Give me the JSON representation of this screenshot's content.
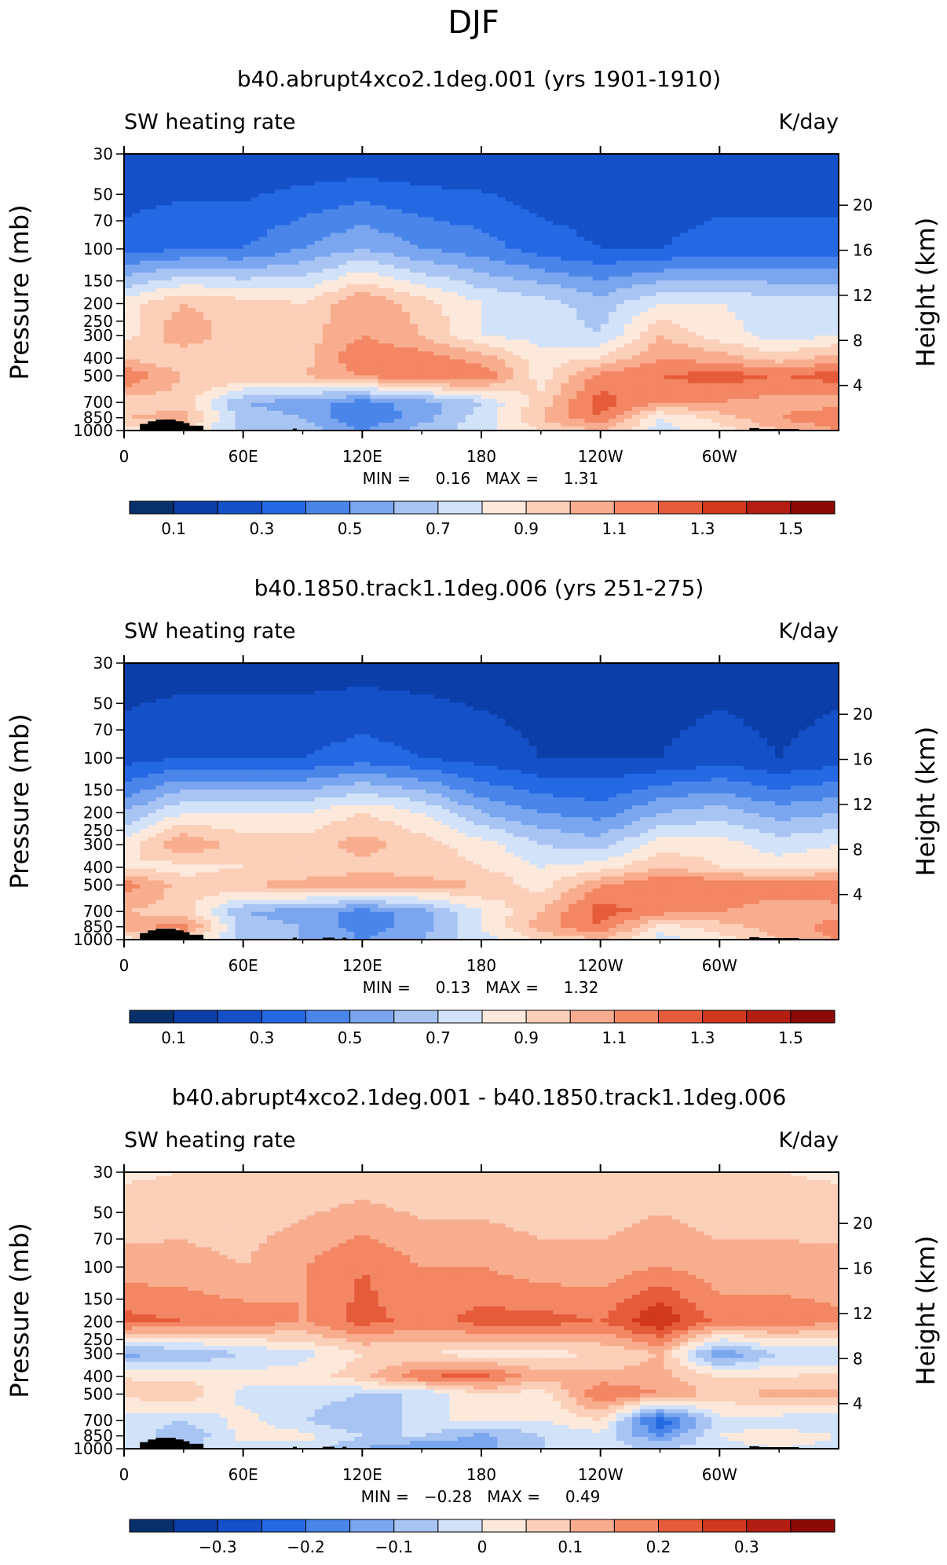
{
  "figure": {
    "title": "DJF",
    "background": "#ffffff"
  },
  "chart_data": [
    {
      "type": "heatmap",
      "title": "b40.abrupt4xco2.1deg.001 (yrs 1901-1910)",
      "left_label": "SW heating rate",
      "right_label": "K/day",
      "x_tick_labels": [
        "0",
        "60E",
        "120E",
        "180",
        "120W",
        "60W"
      ],
      "x_ticks_deg": [
        0,
        60,
        120,
        180,
        240,
        300
      ],
      "xlim_deg": [
        0,
        360
      ],
      "y_tick_labels": [
        "30",
        "50",
        "70",
        "100",
        "150",
        "200",
        "250",
        "300",
        "400",
        "500",
        "700",
        "850",
        "1000"
      ],
      "y_ticks_mb": [
        30,
        50,
        70,
        100,
        150,
        200,
        250,
        300,
        400,
        500,
        700,
        850,
        1000
      ],
      "ylim_mb": [
        30,
        1000
      ],
      "ylabel": "Pressure (mb)",
      "right_axis_label": "Height (km)",
      "height_tick_labels": [
        "20",
        "16",
        "12",
        "8",
        "4"
      ],
      "height_ticks_km": [
        20,
        16,
        12,
        8,
        4
      ],
      "stats_text": "MIN =     0.16   MAX =     1.31",
      "min": 0.16,
      "max": 1.31,
      "colorbar_labels": [
        "0.1",
        "0.3",
        "0.5",
        "0.7",
        "0.9",
        "1.1",
        "1.3",
        "1.5"
      ],
      "colorbar_levels": [
        0.1,
        0.2,
        0.3,
        0.4,
        0.5,
        0.6,
        0.7,
        0.8,
        0.9,
        1.0,
        1.1,
        1.2,
        1.3,
        1.4,
        1.5
      ],
      "field": {
        "lon": [
          0,
          30,
          60,
          90,
          120,
          150,
          180,
          210,
          240,
          270,
          300,
          330,
          360
        ],
        "p": [
          30,
          100,
          200,
          300,
          400,
          500,
          700,
          850,
          1000
        ],
        "values": [
          [
            0.2,
            0.2,
            0.2,
            0.2,
            0.2,
            0.2,
            0.2,
            0.2,
            0.2,
            0.2,
            0.2,
            0.2,
            0.2
          ],
          [
            0.35,
            0.4,
            0.4,
            0.5,
            0.6,
            0.5,
            0.45,
            0.35,
            0.3,
            0.3,
            0.35,
            0.35,
            0.35
          ],
          [
            0.85,
            1.0,
            0.95,
            0.9,
            1.1,
            0.95,
            0.8,
            0.75,
            0.65,
            0.8,
            0.8,
            0.75,
            0.75
          ],
          [
            0.85,
            1.1,
            0.9,
            0.95,
            1.1,
            1.0,
            0.8,
            0.75,
            0.7,
            1.0,
            0.85,
            0.75,
            0.8
          ],
          [
            1.0,
            0.9,
            0.95,
            0.95,
            1.2,
            1.15,
            1.05,
            0.85,
            0.9,
            1.1,
            1.05,
            0.95,
            1.05
          ],
          [
            1.2,
            1.0,
            1.0,
            1.0,
            1.1,
            1.2,
            1.2,
            0.85,
            1.15,
            1.2,
            1.25,
            1.2,
            1.25
          ],
          [
            0.95,
            0.95,
            0.6,
            0.55,
            0.45,
            0.55,
            0.7,
            0.95,
            1.25,
            1.1,
            1.1,
            1.05,
            1.05
          ],
          [
            1.0,
            1.05,
            0.65,
            0.6,
            0.4,
            0.55,
            0.75,
            1.0,
            1.2,
            0.8,
            0.95,
            1.1,
            1.2
          ],
          [
            0.85,
            0.9,
            0.65,
            0.65,
            0.5,
            0.65,
            0.75,
            0.9,
            1.0,
            0.75,
            0.85,
            1.0,
            1.1
          ]
        ]
      },
      "terrain_mask": "black"
    },
    {
      "type": "heatmap",
      "title": "b40.1850.track1.1deg.006 (yrs 251-275)",
      "left_label": "SW heating rate",
      "right_label": "K/day",
      "x_tick_labels": [
        "0",
        "60E",
        "120E",
        "180",
        "120W",
        "60W"
      ],
      "x_ticks_deg": [
        0,
        60,
        120,
        180,
        240,
        300
      ],
      "xlim_deg": [
        0,
        360
      ],
      "y_tick_labels": [
        "30",
        "50",
        "70",
        "100",
        "150",
        "200",
        "250",
        "300",
        "400",
        "500",
        "700",
        "850",
        "1000"
      ],
      "y_ticks_mb": [
        30,
        50,
        70,
        100,
        150,
        200,
        250,
        300,
        400,
        500,
        700,
        850,
        1000
      ],
      "ylim_mb": [
        30,
        1000
      ],
      "ylabel": "Pressure (mb)",
      "right_axis_label": "Height (km)",
      "height_tick_labels": [
        "20",
        "16",
        "12",
        "8",
        "4"
      ],
      "height_ticks_km": [
        20,
        16,
        12,
        8,
        4
      ],
      "stats_text": "MIN =     0.13   MAX =     1.32",
      "min": 0.13,
      "max": 1.32,
      "colorbar_labels": [
        "0.1",
        "0.3",
        "0.5",
        "0.7",
        "0.9",
        "1.1",
        "1.3",
        "1.5"
      ],
      "colorbar_levels": [
        0.1,
        0.2,
        0.3,
        0.4,
        0.5,
        0.6,
        0.7,
        0.8,
        0.9,
        1.0,
        1.1,
        1.2,
        1.3,
        1.4,
        1.5
      ],
      "field": {
        "lon": [
          0,
          30,
          60,
          90,
          120,
          150,
          180,
          210,
          240,
          270,
          300,
          330,
          360
        ],
        "p": [
          30,
          100,
          200,
          300,
          400,
          500,
          700,
          850,
          1000
        ],
        "values": [
          [
            0.15,
            0.15,
            0.15,
            0.15,
            0.15,
            0.15,
            0.15,
            0.15,
            0.15,
            0.15,
            0.15,
            0.15,
            0.15
          ],
          [
            0.25,
            0.3,
            0.3,
            0.3,
            0.35,
            0.3,
            0.25,
            0.2,
            0.2,
            0.2,
            0.25,
            0.2,
            0.25
          ],
          [
            0.6,
            0.8,
            0.8,
            0.8,
            0.9,
            0.8,
            0.6,
            0.5,
            0.45,
            0.6,
            0.65,
            0.55,
            0.6
          ],
          [
            0.85,
            1.1,
            0.95,
            0.95,
            1.05,
            0.95,
            0.85,
            0.7,
            0.65,
            0.85,
            0.85,
            0.75,
            0.8
          ],
          [
            0.9,
            0.85,
            0.9,
            0.9,
            0.95,
            0.95,
            0.9,
            0.8,
            0.85,
            1.0,
            0.9,
            0.85,
            0.9
          ],
          [
            1.15,
            0.95,
            1.0,
            1.05,
            1.1,
            1.05,
            1.0,
            0.85,
            1.1,
            1.2,
            1.2,
            1.15,
            1.2
          ],
          [
            1.0,
            0.95,
            0.6,
            0.55,
            0.45,
            0.55,
            0.8,
            1.0,
            1.25,
            1.15,
            1.1,
            1.05,
            1.05
          ],
          [
            1.05,
            1.15,
            0.65,
            0.6,
            0.45,
            0.55,
            0.8,
            1.05,
            1.2,
            0.85,
            0.95,
            1.05,
            1.15
          ],
          [
            0.85,
            0.95,
            0.65,
            0.6,
            0.5,
            0.6,
            0.75,
            0.9,
            1.0,
            0.75,
            0.85,
            1.0,
            1.1
          ]
        ]
      },
      "terrain_mask": "black"
    },
    {
      "type": "heatmap",
      "title": "b40.abrupt4xco2.1deg.001 - b40.1850.track1.1deg.006",
      "left_label": "SW heating rate",
      "right_label": "K/day",
      "x_tick_labels": [
        "0",
        "60E",
        "120E",
        "180",
        "120W",
        "60W"
      ],
      "x_ticks_deg": [
        0,
        60,
        120,
        180,
        240,
        300
      ],
      "xlim_deg": [
        0,
        360
      ],
      "y_tick_labels": [
        "30",
        "50",
        "70",
        "100",
        "150",
        "200",
        "250",
        "300",
        "400",
        "500",
        "700",
        "850",
        "1000"
      ],
      "y_ticks_mb": [
        30,
        50,
        70,
        100,
        150,
        200,
        250,
        300,
        400,
        500,
        700,
        850,
        1000
      ],
      "ylim_mb": [
        30,
        1000
      ],
      "ylabel": "Pressure (mb)",
      "right_axis_label": "Height (km)",
      "height_tick_labels": [
        "20",
        "16",
        "12",
        "8",
        "4"
      ],
      "height_ticks_km": [
        20,
        16,
        12,
        8,
        4
      ],
      "stats_text": "MIN =   −0.28   MAX =     0.49",
      "min": -0.28,
      "max": 0.49,
      "colorbar_labels": [
        "−0.3",
        "−0.2",
        "−0.1",
        "0",
        "0.1",
        "0.2",
        "0.3"
      ],
      "colorbar_levels": [
        -0.35,
        -0.3,
        -0.25,
        -0.2,
        -0.15,
        -0.1,
        -0.05,
        0,
        0.05,
        0.1,
        0.15,
        0.2,
        0.25,
        0.3,
        0.35
      ],
      "field": {
        "lon": [
          0,
          30,
          60,
          90,
          120,
          150,
          180,
          210,
          240,
          270,
          300,
          330,
          360
        ],
        "p": [
          30,
          100,
          200,
          300,
          400,
          500,
          700,
          850,
          1000
        ],
        "values": [
          [
            0.04,
            0.05,
            0.05,
            0.05,
            0.06,
            0.05,
            0.05,
            0.05,
            0.05,
            0.06,
            0.05,
            0.05,
            0.04
          ],
          [
            0.12,
            0.12,
            0.1,
            0.15,
            0.2,
            0.15,
            0.15,
            0.12,
            0.12,
            0.15,
            0.12,
            0.12,
            0.12
          ],
          [
            0.22,
            0.2,
            0.18,
            0.15,
            0.22,
            0.18,
            0.22,
            0.22,
            0.2,
            0.3,
            0.18,
            0.18,
            0.16
          ],
          [
            -0.12,
            -0.1,
            -0.05,
            -0.02,
            0.05,
            0.05,
            0.02,
            0.03,
            0.05,
            0.1,
            -0.15,
            -0.05,
            -0.05
          ],
          [
            0.05,
            0.03,
            0.02,
            0.03,
            0.08,
            0.2,
            0.22,
            0.12,
            0.12,
            0.12,
            0.05,
            0.05,
            0.06
          ],
          [
            0.06,
            0.1,
            -0.02,
            -0.02,
            -0.05,
            -0.05,
            0.05,
            0.02,
            0.2,
            0.15,
            0.08,
            0.12,
            0.12
          ],
          [
            -0.02,
            -0.05,
            0.02,
            -0.05,
            -0.1,
            -0.02,
            0.02,
            0.0,
            0.05,
            -0.25,
            -0.02,
            -0.03,
            -0.05
          ],
          [
            0.0,
            -0.1,
            0.02,
            0.02,
            -0.05,
            -0.05,
            -0.12,
            -0.05,
            -0.02,
            -0.15,
            0.0,
            0.03,
            0.0
          ],
          [
            -0.05,
            -0.05,
            -0.02,
            -0.02,
            -0.1,
            -0.15,
            -0.12,
            -0.05,
            -0.03,
            -0.05,
            -0.02,
            0.0,
            -0.02
          ]
        ]
      },
      "terrain_mask": "black"
    }
  ],
  "colors": {
    "colormap": [
      "#08306b",
      "#0b3ea8",
      "#1450c8",
      "#2468e4",
      "#4a86ea",
      "#7aa6ef",
      "#a8c4f3",
      "#d2e2f8",
      "#fde9dc",
      "#fbcfb8",
      "#f8ad8e",
      "#f38663",
      "#e65c3b",
      "#d1381d",
      "#b21f12",
      "#8b0a06"
    ],
    "terrain": "#000000"
  }
}
